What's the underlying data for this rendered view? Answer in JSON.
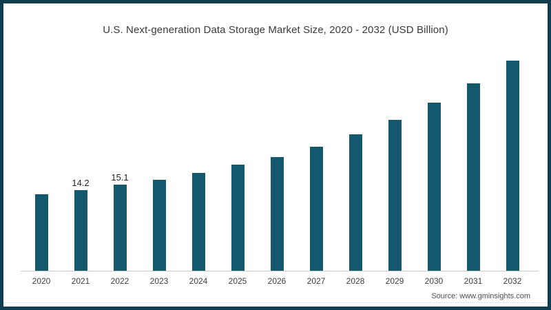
{
  "page": {
    "background": "#ffffff",
    "border_color": "#0E3E50"
  },
  "chart_data": {
    "type": "bar",
    "title": "U.S. Next-generation Data Storage Market Size, 2020 - 2032 (USD Billion)",
    "categories": [
      "2020",
      "2021",
      "2022",
      "2023",
      "2024",
      "2025",
      "2026",
      "2027",
      "2028",
      "2029",
      "2030",
      "2031",
      "2032"
    ],
    "values": [
      13.4,
      14.2,
      15.1,
      16.0,
      17.2,
      18.6,
      20.0,
      21.8,
      24.0,
      26.5,
      29.6,
      32.9,
      36.9
    ],
    "data_labels": {
      "2021": "14.2",
      "2022": "15.1"
    },
    "bar_color": "#14586D",
    "axis_line_color": "#cccccc",
    "xlabel": "",
    "ylabel": "",
    "ylim": [
      0,
      38
    ],
    "grid": false,
    "legend_position": "none"
  },
  "footer": {
    "source": "Source: www.gminsights.com"
  }
}
